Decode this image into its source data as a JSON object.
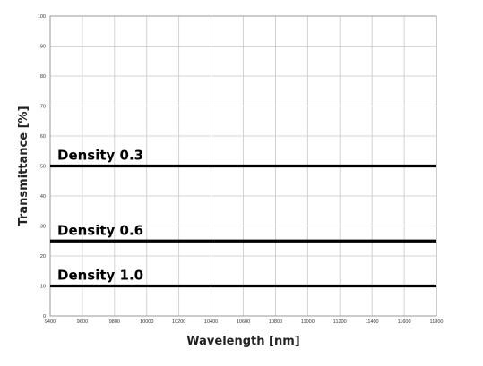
{
  "chart_data": {
    "type": "line",
    "xlabel": "Wavelength [nm]",
    "ylabel": "Transmittance [%]",
    "xlim": [
      9400,
      11800
    ],
    "ylim": [
      0,
      100
    ],
    "x_ticks": [
      9400,
      9600,
      9800,
      10000,
      10200,
      10400,
      10600,
      10800,
      11000,
      11200,
      11400,
      11600,
      11800
    ],
    "y_ticks": [
      0,
      10,
      20,
      30,
      40,
      50,
      60,
      70,
      80,
      90,
      100
    ],
    "grid": true,
    "series": [
      {
        "name": "Density 0.3",
        "x": [
          9400,
          11800
        ],
        "y": [
          50,
          50
        ]
      },
      {
        "name": "Density 0.6",
        "x": [
          9400,
          11800
        ],
        "y": [
          25,
          25
        ]
      },
      {
        "name": "Density 1.0",
        "x": [
          9400,
          11800
        ],
        "y": [
          10,
          10
        ]
      }
    ]
  }
}
